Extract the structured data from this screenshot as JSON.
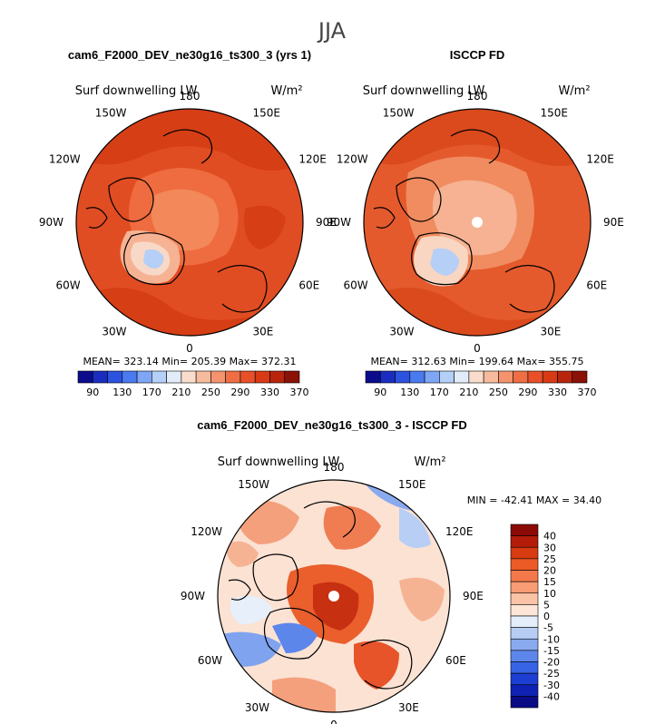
{
  "page_title": "JJA",
  "panels": [
    {
      "title": "cam6_F2000_DEV_ne30g16_ts300_3 (yrs 1)",
      "field_label": "Surf downwelling LW",
      "units": "W/m²",
      "stats": "MEAN= 323.14   Min= 205.39   Max= 372.31",
      "has_pole_hole": false
    },
    {
      "title": "ISCCP FD",
      "field_label": "Surf downwelling LW",
      "units": "W/m²",
      "stats": "MEAN= 312.63   Min= 199.64   Max= 355.75",
      "has_pole_hole": true
    },
    {
      "title": "cam6_F2000_DEV_ne30g16_ts300_3 - ISCCP FD",
      "field_label": "Surf downwelling LW",
      "units": "W/m²",
      "stats": "MIN = -42.41  MAX =  34.40",
      "has_pole_hole": true
    }
  ],
  "longitude_labels": [
    "180",
    "150E",
    "120E",
    "90E",
    "60E",
    "30E",
    "0",
    "30W",
    "60W",
    "90W",
    "120W",
    "150W"
  ],
  "colorbar_abs": {
    "labels": [
      "90",
      "130",
      "170",
      "210",
      "250",
      "290",
      "330",
      "370"
    ],
    "colors": [
      "#0a0c8c",
      "#1a2dc0",
      "#2c52e0",
      "#4a7af0",
      "#7ea6f5",
      "#b4cff8",
      "#e2ecf9",
      "#f9dccb",
      "#f6bb9d",
      "#f4946e",
      "#f06e44",
      "#e8502a",
      "#d93a16",
      "#b8240c",
      "#8a1206"
    ]
  },
  "colorbar_diff": {
    "labels": [
      "40",
      "30",
      "25",
      "20",
      "15",
      "10",
      "5",
      "0",
      "-5",
      "-10",
      "-15",
      "-20",
      "-25",
      "-30",
      "-40"
    ],
    "colors": [
      "#8b0a06",
      "#b31c0a",
      "#d83a12",
      "#ec5a26",
      "#f4794a",
      "#f79c74",
      "#fbc3a6",
      "#fde6d8",
      "#e4edfa",
      "#b7cdf3",
      "#8aaaf0",
      "#5d86ea",
      "#3664e4",
      "#1d3ed2",
      "#0f22b4",
      "#0a0c86"
    ]
  },
  "chart_data": [
    {
      "type": "heatmap",
      "title": "cam6_F2000_DEV_ne30g16_ts300_3 (yrs 1)",
      "variable": "Surf downwelling LW",
      "units": "W/m²",
      "projection": "north polar stereographic",
      "season": "JJA",
      "mean": 323.14,
      "min": 205.39,
      "max": 372.31,
      "contour_levels": [
        90,
        130,
        170,
        210,
        250,
        290,
        330,
        370
      ]
    },
    {
      "type": "heatmap",
      "title": "ISCCP FD",
      "variable": "Surf downwelling LW",
      "units": "W/m²",
      "projection": "north polar stereographic",
      "season": "JJA",
      "mean": 312.63,
      "min": 199.64,
      "max": 355.75,
      "contour_levels": [
        90,
        130,
        170,
        210,
        250,
        290,
        330,
        370
      ]
    },
    {
      "type": "heatmap",
      "title": "cam6_F2000_DEV_ne30g16_ts300_3 - ISCCP FD",
      "variable": "Surf downwelling LW",
      "units": "W/m²",
      "projection": "north polar stereographic",
      "season": "JJA",
      "min": -42.41,
      "max": 34.4,
      "contour_levels": [
        -40,
        -30,
        -25,
        -20,
        -15,
        -10,
        -5,
        0,
        5,
        10,
        15,
        20,
        25,
        30,
        40
      ]
    }
  ]
}
